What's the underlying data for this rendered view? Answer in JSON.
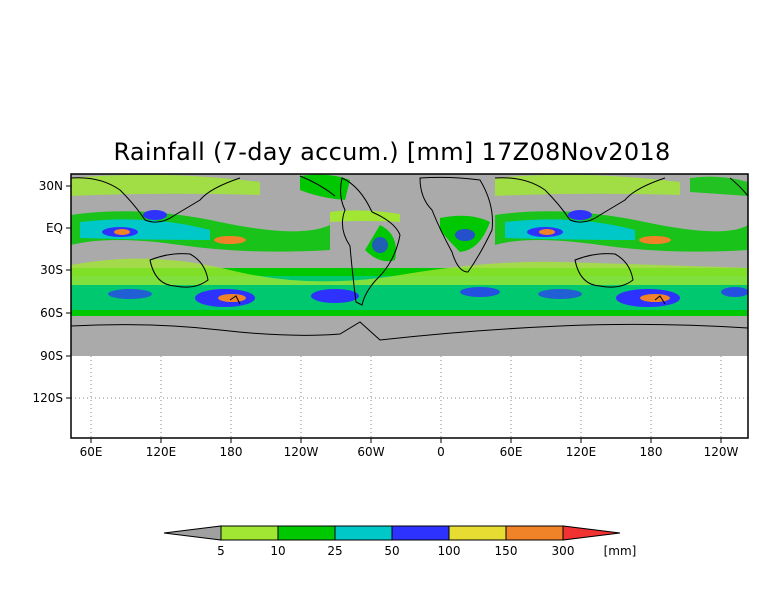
{
  "title": "Rainfall (7-day accum.) [mm] 17Z08Nov2018",
  "y_ticks": [
    "30N",
    "EQ",
    "30S",
    "60S",
    "90S",
    "120S"
  ],
  "x_ticks": [
    "60E",
    "120E",
    "180",
    "120W",
    "60W",
    "0",
    "60E",
    "120E",
    "180",
    "120W"
  ],
  "colorbar": {
    "levels": [
      "5",
      "10",
      "25",
      "50",
      "100",
      "150",
      "300"
    ],
    "unit": "[mm]",
    "colors": [
      "#a0a0a0",
      "#a0e632",
      "#00c800",
      "#00c8c8",
      "#2d32ff",
      "#e6dc32",
      "#f08228",
      "#f03232"
    ]
  },
  "colors": {
    "no_rain": "#aaaaaa",
    "frame": "#000000",
    "grid": "#888888"
  }
}
